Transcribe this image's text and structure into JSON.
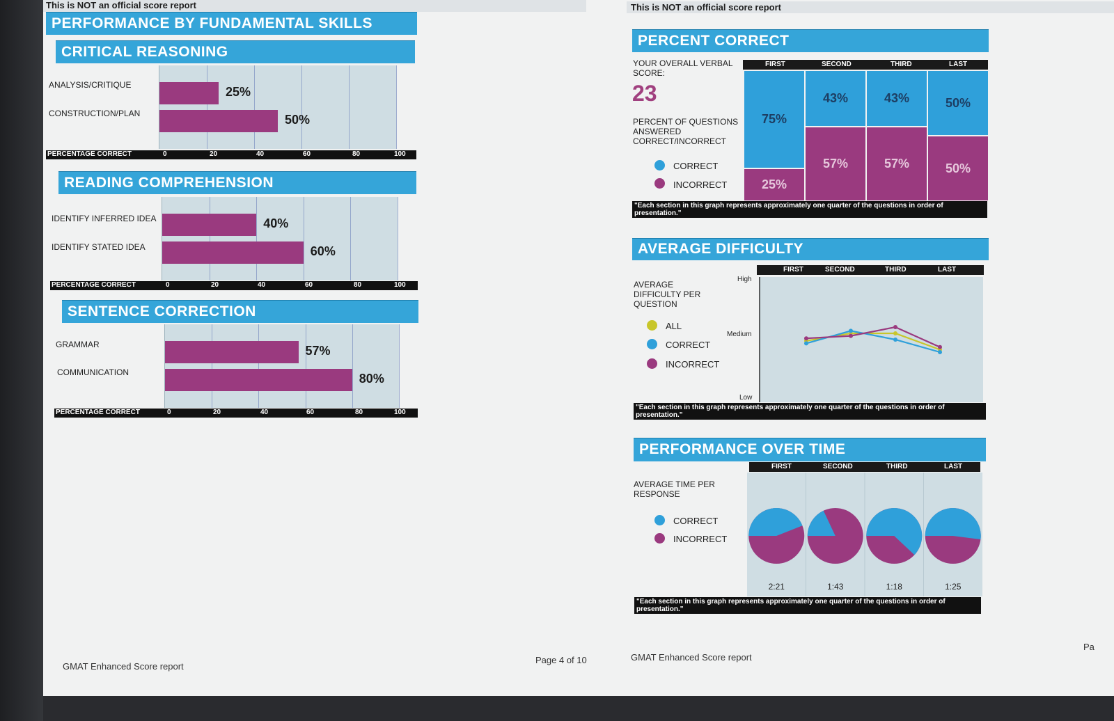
{
  "notice": "This is NOT an official score report",
  "left": {
    "main_title": "PERFORMANCE BY FUNDAMENTAL SKILLS",
    "axis_label": "PERCENTAGE CORRECT",
    "ticks": [
      "0",
      "20",
      "40",
      "60",
      "80",
      "100"
    ],
    "sections": [
      {
        "title": "CRITICAL REASONING",
        "rows": [
          {
            "label": "ANALYSIS/CRITIQUE",
            "value": 25,
            "text": "25%"
          },
          {
            "label": "CONSTRUCTION/PLAN",
            "value": 50,
            "text": "50%"
          }
        ]
      },
      {
        "title": "READING COMPREHENSION",
        "rows": [
          {
            "label": "IDENTIFY INFERRED IDEA",
            "value": 40,
            "text": "40%"
          },
          {
            "label": "IDENTIFY STATED IDEA",
            "value": 60,
            "text": "60%"
          }
        ]
      },
      {
        "title": "SENTENCE CORRECTION",
        "rows": [
          {
            "label": "GRAMMAR",
            "value": 57,
            "text": "57%"
          },
          {
            "label": "COMMUNICATION",
            "value": 80,
            "text": "80%"
          }
        ]
      }
    ]
  },
  "right": {
    "percent_correct": {
      "title": "PERCENT CORRECT",
      "score_label": "YOUR OVERALL VERBAL SCORE:",
      "score": "23",
      "questions_label": "PERCENT OF QUESTIONS ANSWERED CORRECT/INCORRECT",
      "legend": {
        "correct": "CORRECT",
        "incorrect": "INCORRECT"
      },
      "quarters": [
        "FIRST",
        "SECOND",
        "THIRD",
        "LAST"
      ],
      "correct": [
        75,
        43,
        43,
        50
      ],
      "incorrect": [
        25,
        57,
        57,
        50
      ],
      "correct_text": [
        "75%",
        "43%",
        "43%",
        "50%"
      ],
      "incorrect_text": [
        "25%",
        "57%",
        "57%",
        "50%"
      ],
      "note": "\"Each section in this graph represents approximately one quarter of the questions in order of presentation.\""
    },
    "average_difficulty": {
      "title": "AVERAGE DIFFICULTY",
      "label": "AVERAGE DIFFICULTY PER QUESTION",
      "legend": {
        "all": "ALL",
        "correct": "CORRECT",
        "incorrect": "INCORRECT"
      },
      "quarters": [
        "FIRST",
        "SECOND",
        "THIRD",
        "LAST"
      ],
      "y_levels": {
        "high": "High",
        "medium": "Medium",
        "low": "Low"
      },
      "series": {
        "all": [
          0.49,
          0.55,
          0.55,
          0.42
        ],
        "correct": [
          0.47,
          0.57,
          0.5,
          0.4
        ],
        "incorrect": [
          0.51,
          0.53,
          0.6,
          0.44
        ]
      },
      "note": "\"Each section in this graph represents approximately one quarter of the questions in order of presentation.\""
    },
    "performance_over_time": {
      "title": "PERFORMANCE OVER TIME",
      "label": "AVERAGE TIME PER RESPONSE",
      "legend": {
        "correct": "CORRECT",
        "incorrect": "INCORRECT"
      },
      "quarters": [
        "FIRST",
        "SECOND",
        "THIRD",
        "LAST"
      ],
      "correct_share": [
        0.44,
        0.18,
        0.62,
        0.52
      ],
      "times": [
        "2:21",
        "1:43",
        "1:18",
        "1:25"
      ],
      "note": "\"Each section in this graph represents approximately one quarter of the questions in order of presentation.\""
    }
  },
  "footer": {
    "left": "GMAT Enhanced Score report",
    "page": "Page 4 of 10",
    "right": "GMAT Enhanced Score report",
    "edge": "Pa"
  },
  "colors": {
    "blue": "#2fa0da",
    "plum": "#9a3a7f",
    "yellow": "#c8c62a",
    "header": "#35a5d9"
  }
}
